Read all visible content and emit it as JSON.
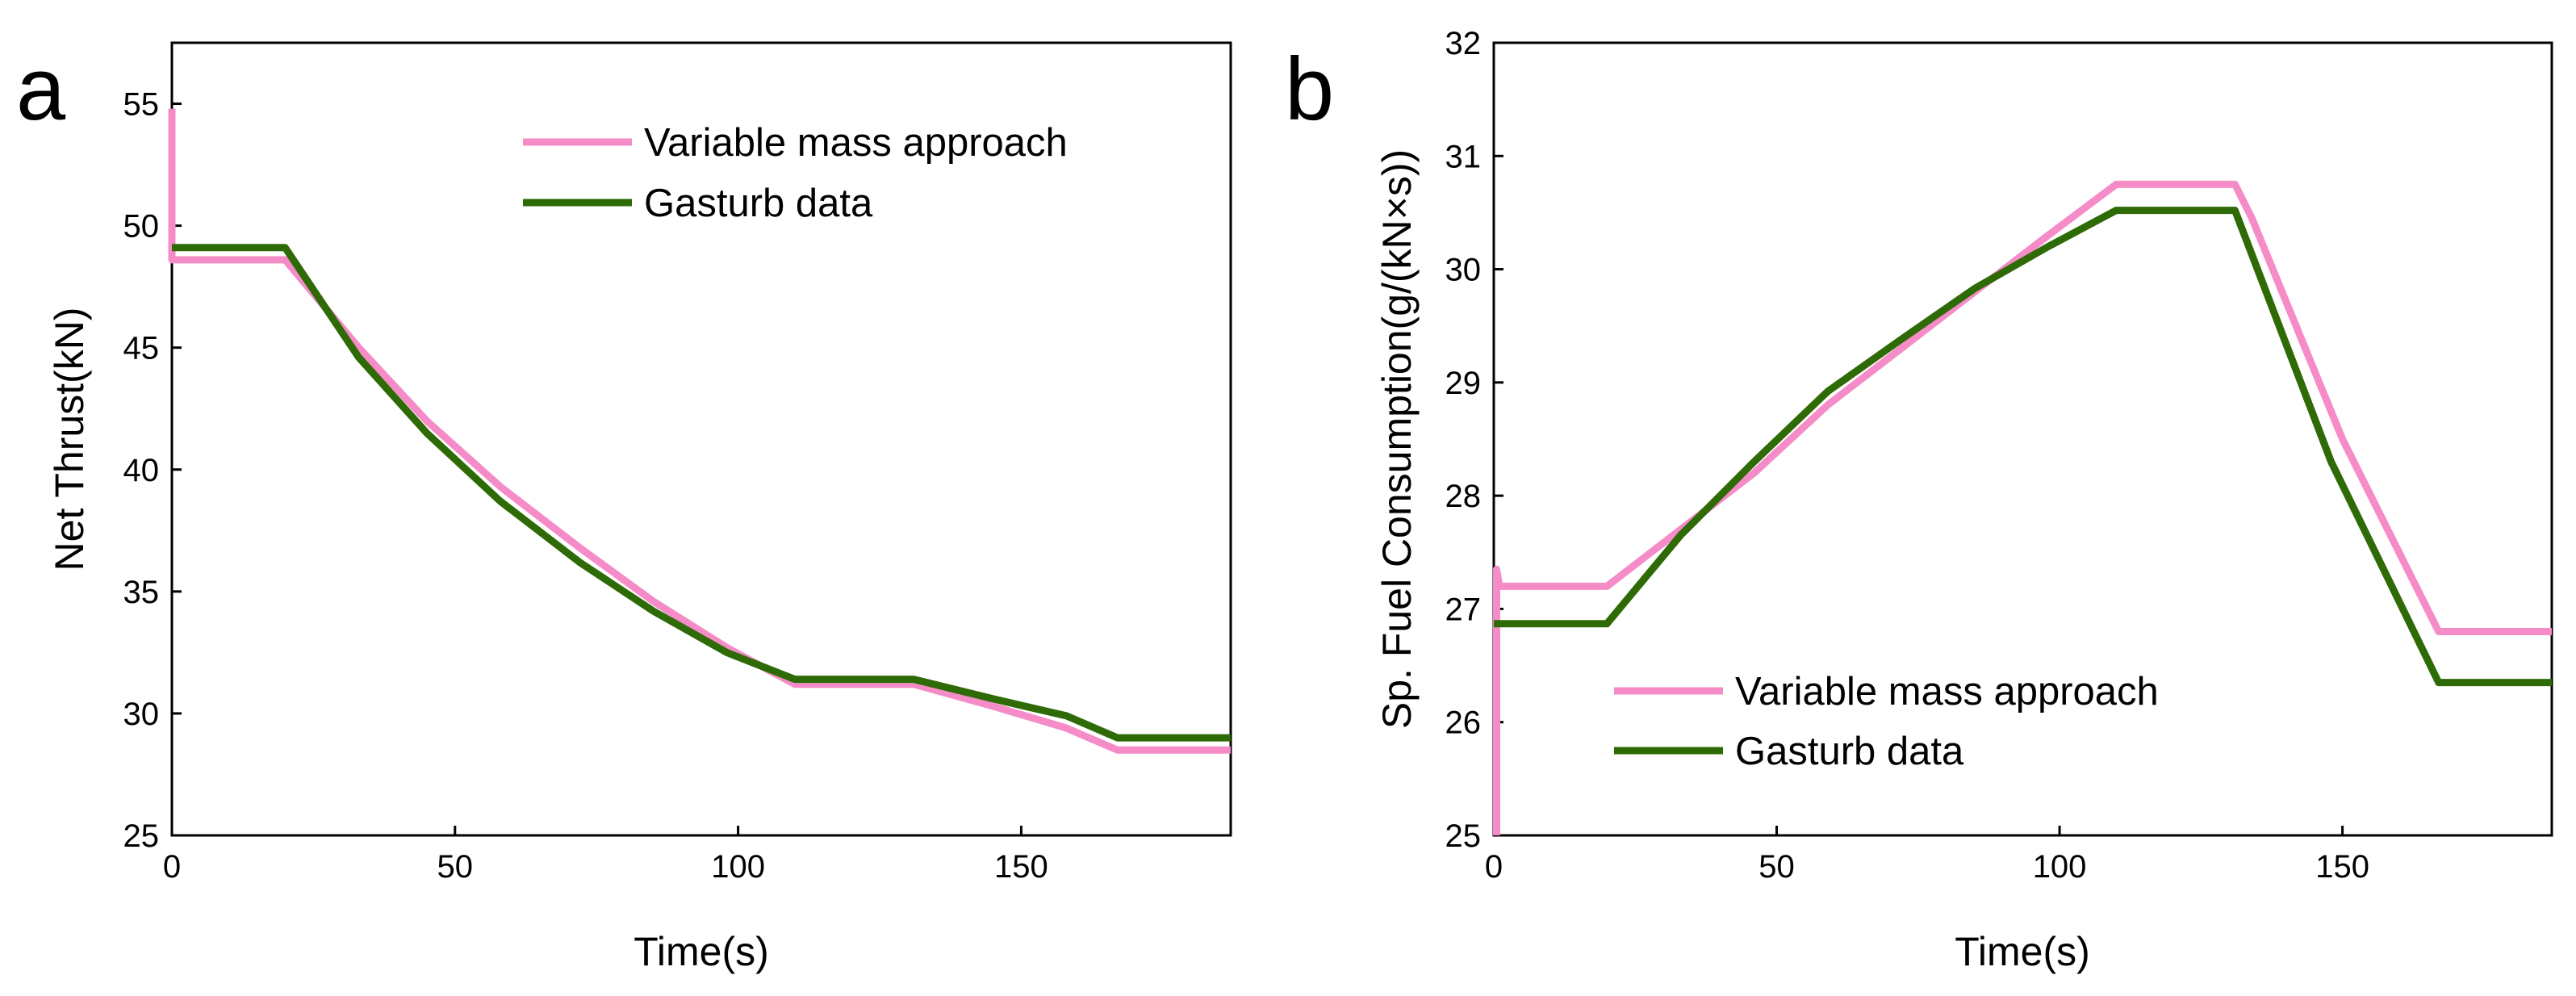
{
  "figure": {
    "panels": [
      {
        "letter": "a"
      },
      {
        "letter": "b"
      }
    ]
  },
  "chart_data": [
    {
      "type": "line",
      "panel": "a",
      "title": "",
      "xlabel": "Time(s)",
      "ylabel": "Net Thrust(kN)",
      "xlim": [
        0,
        187
      ],
      "ylim": [
        25,
        57.5
      ],
      "xticks": [
        0,
        50,
        100,
        150
      ],
      "yticks": [
        25,
        30,
        35,
        40,
        45,
        50,
        55
      ],
      "legend": "top-right",
      "series": [
        {
          "name": "Variable mass approach",
          "color": "#f58cc8",
          "x": [
            0,
            0,
            0.3,
            20,
            33,
            45,
            58,
            72,
            85,
            98,
            110,
            131,
            145,
            158,
            167,
            187
          ],
          "y": [
            54.8,
            48.6,
            48.6,
            48.6,
            45.0,
            42.0,
            39.3,
            36.8,
            34.6,
            32.7,
            31.2,
            31.2,
            30.3,
            29.4,
            28.5,
            28.5
          ]
        },
        {
          "name": "Gasturb data",
          "color": "#2e6b06",
          "x": [
            0,
            20,
            33,
            45,
            58,
            72,
            85,
            98,
            110,
            131,
            145,
            158,
            167,
            187
          ],
          "y": [
            49.1,
            49.1,
            44.6,
            41.5,
            38.7,
            36.2,
            34.2,
            32.5,
            31.4,
            31.4,
            30.6,
            29.9,
            29.0,
            29.0
          ]
        }
      ]
    },
    {
      "type": "line",
      "panel": "b",
      "title": "",
      "xlabel": "Time(s)",
      "ylabel": "Sp. Fuel Consumption(g/(kN×s))",
      "xlim": [
        0,
        187
      ],
      "ylim": [
        25,
        32
      ],
      "xticks": [
        0,
        50,
        100,
        150
      ],
      "yticks": [
        25,
        26,
        27,
        28,
        29,
        30,
        31,
        32
      ],
      "legend": "lower-left",
      "series": [
        {
          "name": "Variable mass approach",
          "color": "#f58cc8",
          "x": [
            0.5,
            0.5,
            1,
            20,
            33,
            46,
            59,
            72,
            85,
            98,
            110,
            131,
            134,
            150,
            167,
            187
          ],
          "y": [
            25.0,
            27.35,
            27.2,
            27.2,
            27.7,
            28.2,
            28.8,
            29.3,
            29.8,
            30.3,
            30.75,
            30.75,
            30.45,
            28.5,
            26.8,
            26.8
          ]
        },
        {
          "name": "Gasturb data",
          "color": "#2e6b06",
          "x": [
            0,
            20,
            33,
            46,
            59,
            72,
            85,
            98,
            110,
            131,
            148,
            167,
            187
          ],
          "y": [
            26.87,
            26.87,
            27.65,
            28.3,
            28.92,
            29.38,
            29.83,
            30.2,
            30.52,
            30.52,
            28.3,
            26.35,
            26.35
          ]
        }
      ]
    }
  ]
}
